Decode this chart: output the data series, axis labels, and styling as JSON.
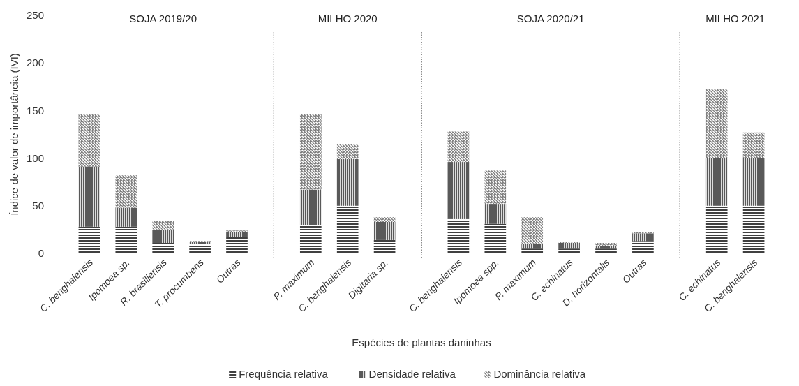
{
  "chart_data": [
    {
      "type": "bar",
      "stacked": true,
      "title": "SOJA 2019/20",
      "ylabel": "Índice de valor de importância (IVI)",
      "legend": "bottom",
      "ylim": [
        0,
        250
      ],
      "yticks": [
        0,
        50,
        100,
        150,
        200,
        250
      ],
      "grid": false,
      "categories": [
        "C. benghalensis",
        "Ipomoea sp.",
        "R. brasiliensis",
        "T. procumbens",
        "Outras"
      ],
      "series": [
        {
          "name": "Frequência relativa",
          "color": "#404040",
          "values": [
            28,
            28,
            11,
            10,
            17
          ]
        },
        {
          "name": "Densidade relativa",
          "color": "#595959",
          "values": [
            63,
            20,
            14,
            2,
            5
          ]
        },
        {
          "name": "Dominância relativa",
          "color": "#7f7f7f",
          "values": [
            55,
            34,
            9,
            1,
            2
          ]
        }
      ]
    },
    {
      "type": "bar",
      "stacked": true,
      "title": "MILHO 2020",
      "ylim": [
        0,
        250
      ],
      "tick_labels": "x",
      "categories": [
        "P. maximum",
        "C. benghalensis",
        "Digitaria sp."
      ],
      "series": [
        {
          "name": "Frequência relativa",
          "color": "#404040",
          "values": [
            30,
            50,
            14
          ]
        },
        {
          "name": "Densidade relativa",
          "color": "#595959",
          "values": [
            37,
            49,
            19
          ]
        },
        {
          "name": "Dominância relativa",
          "color": "#7f7f7f",
          "values": [
            79,
            16,
            5
          ]
        }
      ]
    },
    {
      "type": "bar",
      "stacked": true,
      "title": "SOJA 2020/21",
      "xlabel": "Espécies de plantas daninhas",
      "ylim": [
        0,
        250
      ],
      "tick_labels": "x",
      "categories": [
        "C. benghalensis",
        "Ipomoea spp.",
        "P. maximum",
        "C. echinatus",
        "D. horizontalis",
        "Outras"
      ],
      "series": [
        {
          "name": "Frequência relativa",
          "color": "#404040",
          "values": [
            36,
            31,
            5,
            5,
            5,
            13
          ]
        },
        {
          "name": "Densidade relativa",
          "color": "#595959",
          "values": [
            60,
            21,
            5,
            6,
            3,
            8
          ]
        },
        {
          "name": "Dominância relativa",
          "color": "#7f7f7f",
          "values": [
            32,
            35,
            28,
            1,
            3,
            1
          ]
        }
      ]
    },
    {
      "type": "bar",
      "stacked": true,
      "title": "MILHO 2021",
      "ylim": [
        0,
        250
      ],
      "tick_labels": "x",
      "categories": [
        "C. echinatus",
        "C. benghalensis"
      ],
      "series": [
        {
          "name": "Frequência relativa",
          "color": "#404040",
          "values": [
            50,
            50
          ]
        },
        {
          "name": "Densidade relativa",
          "color": "#595959",
          "values": [
            50,
            50
          ]
        },
        {
          "name": "Dominância relativa",
          "color": "#7f7f7f",
          "values": [
            73,
            27
          ]
        }
      ]
    }
  ]
}
